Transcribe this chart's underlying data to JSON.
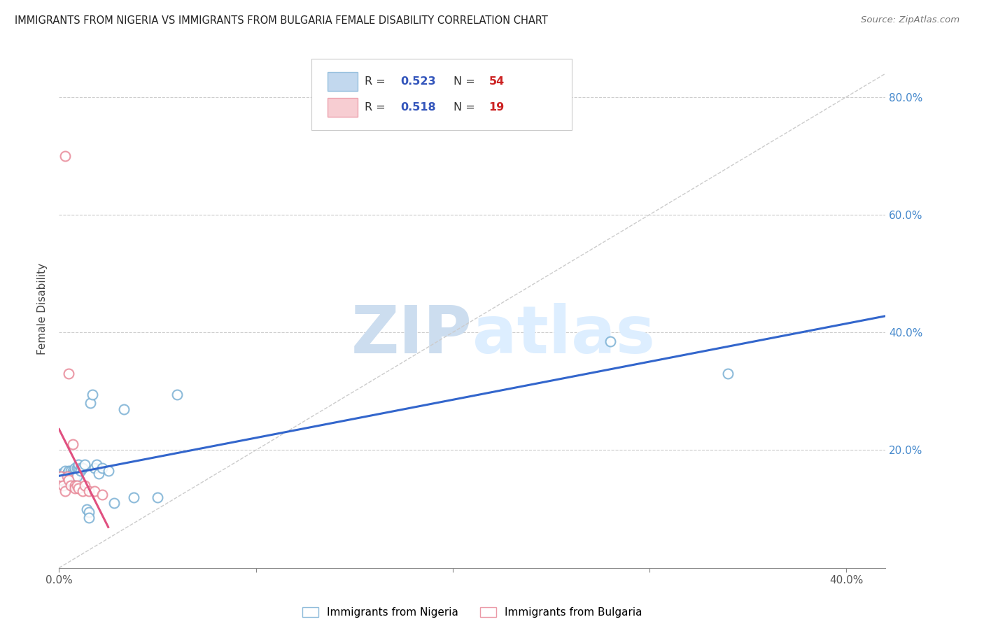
{
  "title": "IMMIGRANTS FROM NIGERIA VS IMMIGRANTS FROM BULGARIA FEMALE DISABILITY CORRELATION CHART",
  "source": "Source: ZipAtlas.com",
  "ylabel": "Female Disability",
  "watermark_zip": "ZIP",
  "watermark_atlas": "atlas",
  "nigeria_R": 0.523,
  "nigeria_N": 54,
  "bulgaria_R": 0.518,
  "bulgaria_N": 19,
  "nigeria_color": "#a8c8e8",
  "nigeria_edge_color": "#7ab0d4",
  "bulgaria_color": "#f4b8c0",
  "bulgaria_edge_color": "#e88898",
  "nigeria_line_color": "#3366cc",
  "bulgaria_line_color": "#e05080",
  "diagonal_color": "#cccccc",
  "nigeria_x": [
    0.001,
    0.001,
    0.002,
    0.002,
    0.002,
    0.003,
    0.003,
    0.003,
    0.003,
    0.003,
    0.004,
    0.004,
    0.004,
    0.004,
    0.005,
    0.005,
    0.005,
    0.005,
    0.005,
    0.006,
    0.006,
    0.006,
    0.006,
    0.007,
    0.007,
    0.007,
    0.008,
    0.008,
    0.008,
    0.009,
    0.009,
    0.01,
    0.01,
    0.011,
    0.011,
    0.012,
    0.013,
    0.014,
    0.015,
    0.015,
    0.016,
    0.017,
    0.018,
    0.019,
    0.02,
    0.022,
    0.025,
    0.028,
    0.033,
    0.038,
    0.05,
    0.06,
    0.28,
    0.34
  ],
  "nigeria_y": [
    0.155,
    0.16,
    0.15,
    0.16,
    0.155,
    0.145,
    0.155,
    0.165,
    0.155,
    0.15,
    0.16,
    0.155,
    0.15,
    0.16,
    0.155,
    0.155,
    0.165,
    0.155,
    0.15,
    0.16,
    0.155,
    0.15,
    0.165,
    0.165,
    0.155,
    0.16,
    0.165,
    0.155,
    0.17,
    0.17,
    0.155,
    0.17,
    0.175,
    0.17,
    0.165,
    0.17,
    0.175,
    0.1,
    0.095,
    0.085,
    0.28,
    0.295,
    0.17,
    0.175,
    0.16,
    0.17,
    0.165,
    0.11,
    0.27,
    0.12,
    0.12,
    0.295,
    0.385,
    0.33
  ],
  "bulgaria_x": [
    0.001,
    0.001,
    0.002,
    0.003,
    0.003,
    0.004,
    0.005,
    0.005,
    0.006,
    0.007,
    0.008,
    0.008,
    0.009,
    0.01,
    0.012,
    0.013,
    0.015,
    0.018,
    0.022
  ],
  "bulgaria_y": [
    0.15,
    0.155,
    0.14,
    0.13,
    0.7,
    0.155,
    0.33,
    0.15,
    0.14,
    0.21,
    0.14,
    0.135,
    0.14,
    0.135,
    0.13,
    0.14,
    0.13,
    0.13,
    0.125
  ],
  "xlim": [
    0.0,
    0.42
  ],
  "ylim": [
    0.0,
    0.88
  ],
  "xticks": [
    0.0,
    0.1,
    0.2,
    0.3,
    0.4
  ],
  "yticks": [
    0.0,
    0.2,
    0.4,
    0.6,
    0.8
  ]
}
